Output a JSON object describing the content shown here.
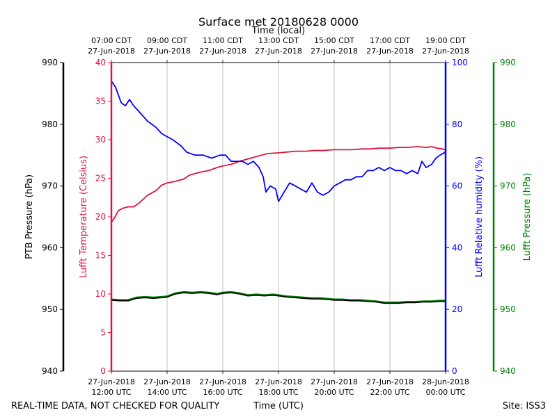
{
  "chart_data": {
    "type": "line",
    "title": "Surface met 20180628 0000",
    "top_axis_label": "Time (local)",
    "bottom_axis_label": "Time (UTC)",
    "footer_left": "REAL-TIME DATA, NOT CHECKED FOR QUALITY",
    "footer_right": "Site: ISS3",
    "x_range_hours": [
      12,
      24
    ],
    "x_ticks": [
      {
        "hour": 12,
        "utc_date": "27-Jun-2018",
        "utc_time": "12:00 UTC",
        "local_time": "07:00 CDT",
        "local_date": "27-Jun-2018"
      },
      {
        "hour": 14,
        "utc_date": "27-Jun-2018",
        "utc_time": "14:00 UTC",
        "local_time": "09:00 CDT",
        "local_date": "27-Jun-2018"
      },
      {
        "hour": 16,
        "utc_date": "27-Jun-2018",
        "utc_time": "16:00 UTC",
        "local_time": "11:00 CDT",
        "local_date": "27-Jun-2018"
      },
      {
        "hour": 18,
        "utc_date": "27-Jun-2018",
        "utc_time": "18:00 UTC",
        "local_time": "13:00 CDT",
        "local_date": "27-Jun-2018"
      },
      {
        "hour": 20,
        "utc_date": "27-Jun-2018",
        "utc_time": "20:00 UTC",
        "local_time": "15:00 CDT",
        "local_date": "27-Jun-2018"
      },
      {
        "hour": 22,
        "utc_date": "27-Jun-2018",
        "utc_time": "22:00 UTC",
        "local_time": "17:00 CDT",
        "local_date": "27-Jun-2018"
      },
      {
        "hour": 24,
        "utc_date": "28-Jun-2018",
        "utc_time": "00:00 UTC",
        "local_time": "19:00 CDT",
        "local_date": "27-Jun-2018"
      }
    ],
    "axes": {
      "ptb_pressure": {
        "label": "PTB Pressure (hPa)",
        "range": [
          940,
          990
        ],
        "ticks": [
          940,
          950,
          960,
          970,
          980,
          990
        ],
        "color": "#000000"
      },
      "temperature": {
        "label": "Lufft Temperature (Celsius)",
        "range": [
          0,
          40
        ],
        "ticks": [
          0,
          5,
          10,
          15,
          20,
          25,
          30,
          35,
          40
        ],
        "color": "#dc143c"
      },
      "humidity": {
        "label": "Lufft Relative humidity (%)",
        "range": [
          0,
          100
        ],
        "ticks": [
          0,
          20,
          40,
          60,
          80,
          100
        ],
        "color": "#0000ff"
      },
      "lufft_pressure": {
        "label": "Lufft Pressure (hPa)",
        "range": [
          940,
          990
        ],
        "ticks": [
          940,
          950,
          960,
          970,
          980,
          990
        ],
        "color": "#008000"
      }
    },
    "series": [
      {
        "name": "Lufft Temperature",
        "axis": "temperature",
        "color": "#dc143c",
        "x": [
          12.0,
          12.1,
          12.25,
          12.4,
          12.6,
          12.8,
          13.0,
          13.3,
          13.6,
          13.8,
          14.0,
          14.3,
          14.6,
          14.8,
          15.0,
          15.2,
          15.5,
          15.8,
          16.0,
          16.3,
          16.6,
          17.0,
          17.3,
          17.6,
          18.0,
          18.3,
          18.6,
          19.0,
          19.3,
          19.6,
          20.0,
          20.3,
          20.6,
          21.0,
          21.3,
          21.6,
          22.0,
          22.3,
          22.6,
          23.0,
          23.3,
          23.5,
          23.7,
          23.9,
          24.0
        ],
        "y": [
          19.3,
          19.8,
          20.8,
          21.1,
          21.3,
          21.3,
          21.8,
          22.8,
          23.4,
          24.1,
          24.4,
          24.6,
          24.9,
          25.4,
          25.6,
          25.8,
          26.0,
          26.4,
          26.6,
          26.8,
          27.2,
          27.6,
          27.9,
          28.2,
          28.3,
          28.4,
          28.5,
          28.5,
          28.6,
          28.6,
          28.7,
          28.7,
          28.7,
          28.8,
          28.8,
          28.9,
          28.9,
          29.0,
          29.0,
          29.1,
          29.0,
          29.1,
          28.9,
          28.8,
          28.6
        ]
      },
      {
        "name": "Lufft Relative humidity",
        "axis": "humidity",
        "color": "#0000ff",
        "x": [
          12.0,
          12.15,
          12.35,
          12.5,
          12.65,
          12.8,
          13.0,
          13.3,
          13.6,
          13.8,
          14.0,
          14.2,
          14.5,
          14.7,
          15.0,
          15.3,
          15.6,
          15.9,
          16.1,
          16.3,
          16.5,
          16.7,
          16.9,
          17.1,
          17.3,
          17.45,
          17.55,
          17.7,
          17.9,
          18.0,
          18.2,
          18.4,
          18.6,
          18.8,
          19.0,
          19.2,
          19.4,
          19.6,
          19.8,
          20.0,
          20.2,
          20.4,
          20.6,
          20.8,
          21.0,
          21.2,
          21.4,
          21.6,
          21.8,
          22.0,
          22.2,
          22.4,
          22.6,
          22.8,
          23.0,
          23.15,
          23.3,
          23.5,
          23.65,
          23.8,
          24.0
        ],
        "y": [
          94,
          92,
          87,
          86,
          88,
          86,
          84,
          81,
          79,
          77,
          76,
          75,
          73,
          71,
          70,
          70,
          69,
          70,
          70,
          68,
          68,
          68,
          67,
          68,
          66,
          63,
          58,
          60,
          59,
          55,
          58,
          61,
          60,
          59,
          58,
          61,
          58,
          57,
          58,
          60,
          61,
          62,
          62,
          63,
          63,
          65,
          65,
          66,
          65,
          66,
          65,
          65,
          64,
          65,
          64,
          68,
          66,
          67,
          69,
          70,
          71
        ]
      },
      {
        "name": "PTB Pressure",
        "axis": "ptb_pressure",
        "color": "#000000",
        "x": [
          12.0,
          12.3,
          12.6,
          12.9,
          13.2,
          13.5,
          13.8,
          14.0,
          14.3,
          14.6,
          14.9,
          15.2,
          15.5,
          15.8,
          16.0,
          16.3,
          16.6,
          16.9,
          17.2,
          17.5,
          17.8,
          18.0,
          18.3,
          18.6,
          18.9,
          19.2,
          19.5,
          19.8,
          20.0,
          20.3,
          20.6,
          20.9,
          21.2,
          21.5,
          21.8,
          22.0,
          22.3,
          22.6,
          22.9,
          23.2,
          23.5,
          23.8,
          24.0
        ],
        "y": [
          951.5,
          951.4,
          951.4,
          951.8,
          951.9,
          951.8,
          951.9,
          952.0,
          952.5,
          952.7,
          952.6,
          952.7,
          952.6,
          952.4,
          952.6,
          952.7,
          952.5,
          952.2,
          952.3,
          952.2,
          952.3,
          952.2,
          952.0,
          951.9,
          951.8,
          951.7,
          951.7,
          951.6,
          951.5,
          951.5,
          951.4,
          951.4,
          951.3,
          951.2,
          951.0,
          951.0,
          951.0,
          951.1,
          951.1,
          951.2,
          951.2,
          951.3,
          951.3
        ]
      },
      {
        "name": "Lufft Pressure",
        "axis": "lufft_pressure",
        "color": "#008000",
        "x": [
          12.0,
          12.3,
          12.6,
          12.9,
          13.2,
          13.5,
          13.8,
          14.0,
          14.3,
          14.6,
          14.9,
          15.2,
          15.5,
          15.8,
          16.0,
          16.3,
          16.6,
          16.9,
          17.2,
          17.5,
          17.8,
          18.0,
          18.3,
          18.6,
          18.9,
          19.2,
          19.5,
          19.8,
          20.0,
          20.3,
          20.6,
          20.9,
          21.2,
          21.5,
          21.8,
          22.0,
          22.3,
          22.6,
          22.9,
          23.2,
          23.5,
          23.8,
          24.0
        ],
        "y": [
          951.6,
          951.5,
          951.5,
          951.9,
          952.0,
          951.9,
          952.0,
          952.1,
          952.6,
          952.8,
          952.7,
          952.8,
          952.7,
          952.5,
          952.7,
          952.8,
          952.6,
          952.3,
          952.4,
          952.3,
          952.4,
          952.3,
          952.1,
          952.0,
          951.9,
          951.8,
          951.8,
          951.7,
          951.6,
          951.6,
          951.5,
          951.5,
          951.4,
          951.3,
          951.1,
          951.1,
          951.1,
          951.2,
          951.2,
          951.3,
          951.3,
          951.4,
          951.4
        ]
      }
    ]
  }
}
